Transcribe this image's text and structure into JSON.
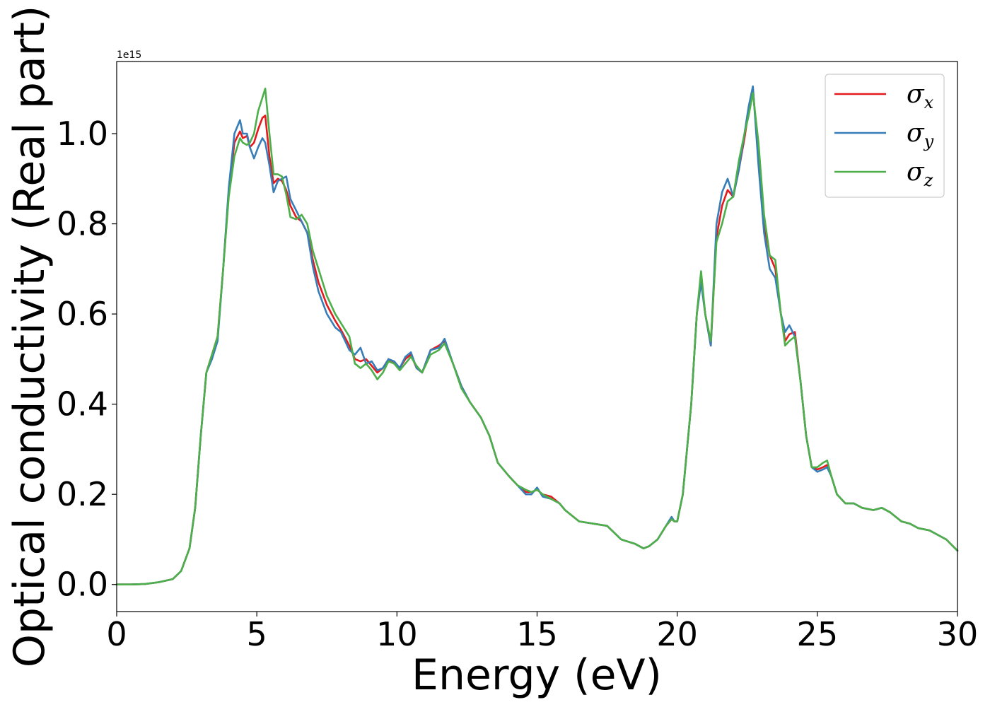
{
  "chart_data": {
    "type": "line",
    "title": "",
    "xlabel": "Energy (eV)",
    "ylabel": "Optical conductivity (Real part)",
    "y_offset_label": "1e15",
    "xlim": [
      0,
      30
    ],
    "ylim": [
      -0.06,
      1.16
    ],
    "x_ticks": [
      0,
      5,
      10,
      15,
      20,
      25,
      30
    ],
    "x_tick_labels": [
      "0",
      "5",
      "10",
      "15",
      "20",
      "25",
      "30"
    ],
    "y_ticks": [
      0.0,
      0.2,
      0.4,
      0.6,
      0.8,
      1.0
    ],
    "y_tick_labels": [
      "0.0",
      "0.2",
      "0.4",
      "0.6",
      "0.8",
      "1.0"
    ],
    "grid": false,
    "legend": {
      "placement": "top-right"
    },
    "series": [
      {
        "name": "σx",
        "symbol": "σ",
        "subscript": "x",
        "color": "#e41a1c",
        "x": [
          0,
          0.5,
          1,
          1.5,
          2,
          2.3,
          2.6,
          2.8,
          3,
          3.2,
          3.4,
          3.6,
          3.8,
          4,
          4.2,
          4.4,
          4.5,
          4.65,
          4.75,
          4.9,
          5.05,
          5.2,
          5.3,
          5.45,
          5.6,
          5.75,
          5.9,
          6.05,
          6.2,
          6.4,
          6.6,
          6.8,
          7,
          7.2,
          7.5,
          7.8,
          8,
          8.3,
          8.5,
          8.7,
          8.9,
          9.1,
          9.3,
          9.5,
          9.7,
          9.9,
          10.1,
          10.3,
          10.5,
          10.7,
          10.9,
          11.2,
          11.5,
          11.7,
          12,
          12.3,
          12.6,
          13,
          13.3,
          13.6,
          14,
          14.3,
          14.6,
          14.8,
          15,
          15.2,
          15.5,
          15.8,
          16,
          16.5,
          17,
          17.5,
          18,
          18.5,
          18.8,
          19,
          19.3,
          19.6,
          19.8,
          19.9,
          20,
          20.2,
          20.5,
          20.7,
          20.85,
          21,
          21.2,
          21.4,
          21.6,
          21.8,
          22,
          22.2,
          22.4,
          22.55,
          22.7,
          22.9,
          23.1,
          23.3,
          23.5,
          23.7,
          23.85,
          24,
          24.2,
          24.4,
          24.6,
          24.8,
          25,
          25.2,
          25.35,
          25.5,
          25.7,
          26,
          26.3,
          26.6,
          27,
          27.3,
          27.6,
          28,
          28.3,
          28.6,
          29,
          29.3,
          29.6,
          30
        ],
        "y": [
          0,
          0,
          0.001,
          0.005,
          0.012,
          0.03,
          0.08,
          0.17,
          0.33,
          0.47,
          0.51,
          0.55,
          0.7,
          0.87,
          0.98,
          1.005,
          0.99,
          0.995,
          0.97,
          0.98,
          1.01,
          1.035,
          1.04,
          0.95,
          0.89,
          0.9,
          0.895,
          0.875,
          0.84,
          0.815,
          0.805,
          0.78,
          0.72,
          0.67,
          0.62,
          0.585,
          0.565,
          0.53,
          0.5,
          0.495,
          0.5,
          0.485,
          0.47,
          0.48,
          0.5,
          0.49,
          0.48,
          0.5,
          0.51,
          0.48,
          0.47,
          0.52,
          0.53,
          0.54,
          0.49,
          0.44,
          0.405,
          0.37,
          0.33,
          0.27,
          0.24,
          0.22,
          0.205,
          0.205,
          0.21,
          0.2,
          0.195,
          0.18,
          0.165,
          0.14,
          0.135,
          0.13,
          0.1,
          0.09,
          0.08,
          0.085,
          0.1,
          0.13,
          0.145,
          0.14,
          0.14,
          0.2,
          0.4,
          0.6,
          0.68,
          0.6,
          0.53,
          0.77,
          0.84,
          0.875,
          0.86,
          0.92,
          0.99,
          1.05,
          1.1,
          0.95,
          0.8,
          0.73,
          0.7,
          0.6,
          0.54,
          0.555,
          0.56,
          0.45,
          0.33,
          0.26,
          0.255,
          0.26,
          0.265,
          0.24,
          0.2,
          0.18,
          0.18,
          0.17,
          0.165,
          0.17,
          0.16,
          0.14,
          0.135,
          0.125,
          0.12,
          0.11,
          0.1,
          0.075
        ]
      },
      {
        "name": "σy",
        "symbol": "σ",
        "subscript": "y",
        "color": "#377eb8",
        "x": [
          0,
          0.5,
          1,
          1.5,
          2,
          2.3,
          2.6,
          2.8,
          3,
          3.2,
          3.4,
          3.6,
          3.8,
          4,
          4.2,
          4.4,
          4.5,
          4.65,
          4.75,
          4.9,
          5.05,
          5.2,
          5.3,
          5.45,
          5.6,
          5.75,
          5.9,
          6.05,
          6.2,
          6.4,
          6.6,
          6.8,
          7,
          7.2,
          7.5,
          7.8,
          8,
          8.3,
          8.5,
          8.7,
          8.9,
          9.1,
          9.3,
          9.5,
          9.7,
          9.9,
          10.1,
          10.3,
          10.5,
          10.7,
          10.9,
          11.2,
          11.5,
          11.7,
          12,
          12.3,
          12.6,
          13,
          13.3,
          13.6,
          14,
          14.3,
          14.6,
          14.8,
          15,
          15.2,
          15.5,
          15.8,
          16,
          16.5,
          17,
          17.5,
          18,
          18.5,
          18.8,
          19,
          19.3,
          19.6,
          19.8,
          19.9,
          20,
          20.2,
          20.5,
          20.7,
          20.85,
          21,
          21.2,
          21.4,
          21.6,
          21.8,
          22,
          22.2,
          22.4,
          22.55,
          22.7,
          22.9,
          23.1,
          23.3,
          23.5,
          23.7,
          23.85,
          24,
          24.2,
          24.4,
          24.6,
          24.8,
          25,
          25.2,
          25.35,
          25.5,
          25.7,
          26,
          26.3,
          26.6,
          27,
          27.3,
          27.6,
          28,
          28.3,
          28.6,
          29,
          29.3,
          29.6,
          30
        ],
        "y": [
          0,
          0,
          0.001,
          0.005,
          0.012,
          0.03,
          0.08,
          0.17,
          0.33,
          0.47,
          0.5,
          0.54,
          0.7,
          0.88,
          1.0,
          1.03,
          1.0,
          1.0,
          0.97,
          0.945,
          0.97,
          0.99,
          0.98,
          0.93,
          0.87,
          0.895,
          0.9,
          0.905,
          0.855,
          0.83,
          0.805,
          0.78,
          0.705,
          0.65,
          0.6,
          0.57,
          0.56,
          0.52,
          0.51,
          0.525,
          0.49,
          0.495,
          0.475,
          0.48,
          0.5,
          0.495,
          0.48,
          0.505,
          0.515,
          0.48,
          0.47,
          0.52,
          0.525,
          0.545,
          0.49,
          0.44,
          0.405,
          0.37,
          0.33,
          0.27,
          0.24,
          0.22,
          0.2,
          0.2,
          0.215,
          0.195,
          0.19,
          0.18,
          0.165,
          0.14,
          0.135,
          0.13,
          0.1,
          0.09,
          0.08,
          0.085,
          0.1,
          0.13,
          0.15,
          0.14,
          0.14,
          0.2,
          0.4,
          0.6,
          0.67,
          0.6,
          0.53,
          0.8,
          0.87,
          0.9,
          0.86,
          0.92,
          1.0,
          1.06,
          1.105,
          0.93,
          0.78,
          0.7,
          0.68,
          0.6,
          0.56,
          0.575,
          0.55,
          0.45,
          0.33,
          0.26,
          0.25,
          0.255,
          0.26,
          0.24,
          0.2,
          0.18,
          0.18,
          0.17,
          0.165,
          0.17,
          0.16,
          0.14,
          0.135,
          0.125,
          0.12,
          0.11,
          0.1,
          0.075
        ]
      },
      {
        "name": "σz",
        "symbol": "σ",
        "subscript": "z",
        "color": "#4daf4a",
        "x": [
          0,
          0.5,
          1,
          1.5,
          2,
          2.3,
          2.6,
          2.8,
          3,
          3.2,
          3.4,
          3.6,
          3.8,
          4,
          4.2,
          4.4,
          4.5,
          4.65,
          4.75,
          4.9,
          5.05,
          5.2,
          5.3,
          5.45,
          5.6,
          5.75,
          5.9,
          6.05,
          6.2,
          6.4,
          6.6,
          6.8,
          7,
          7.2,
          7.5,
          7.8,
          8,
          8.3,
          8.5,
          8.7,
          8.9,
          9.1,
          9.3,
          9.5,
          9.7,
          9.9,
          10.1,
          10.3,
          10.5,
          10.7,
          10.9,
          11.2,
          11.5,
          11.7,
          12,
          12.3,
          12.6,
          13,
          13.3,
          13.6,
          14,
          14.3,
          14.6,
          14.8,
          15,
          15.2,
          15.5,
          15.8,
          16,
          16.5,
          17,
          17.5,
          18,
          18.5,
          18.8,
          19,
          19.3,
          19.6,
          19.8,
          19.9,
          20,
          20.2,
          20.5,
          20.7,
          20.85,
          21,
          21.2,
          21.4,
          21.6,
          21.8,
          22,
          22.2,
          22.4,
          22.55,
          22.7,
          22.9,
          23.1,
          23.3,
          23.5,
          23.7,
          23.85,
          24,
          24.2,
          24.4,
          24.6,
          24.8,
          25,
          25.2,
          25.35,
          25.5,
          25.7,
          26,
          26.3,
          26.6,
          27,
          27.3,
          27.6,
          28,
          28.3,
          28.6,
          29,
          29.3,
          29.6,
          30
        ],
        "y": [
          0,
          0,
          0.001,
          0.005,
          0.012,
          0.03,
          0.08,
          0.17,
          0.33,
          0.47,
          0.51,
          0.55,
          0.7,
          0.86,
          0.95,
          0.99,
          0.98,
          0.975,
          0.98,
          1.0,
          1.05,
          1.08,
          1.1,
          1.0,
          0.91,
          0.91,
          0.905,
          0.865,
          0.815,
          0.81,
          0.82,
          0.8,
          0.74,
          0.7,
          0.64,
          0.6,
          0.58,
          0.55,
          0.49,
          0.48,
          0.49,
          0.475,
          0.455,
          0.47,
          0.495,
          0.49,
          0.475,
          0.49,
          0.505,
          0.485,
          0.47,
          0.51,
          0.52,
          0.535,
          0.49,
          0.435,
          0.405,
          0.37,
          0.33,
          0.27,
          0.24,
          0.22,
          0.21,
          0.205,
          0.21,
          0.2,
          0.19,
          0.18,
          0.165,
          0.14,
          0.135,
          0.13,
          0.1,
          0.09,
          0.08,
          0.085,
          0.1,
          0.13,
          0.145,
          0.14,
          0.14,
          0.2,
          0.4,
          0.6,
          0.695,
          0.6,
          0.54,
          0.76,
          0.8,
          0.85,
          0.86,
          0.94,
          1.0,
          1.04,
          1.09,
          0.98,
          0.82,
          0.73,
          0.72,
          0.6,
          0.53,
          0.54,
          0.55,
          0.45,
          0.33,
          0.26,
          0.26,
          0.27,
          0.275,
          0.24,
          0.2,
          0.18,
          0.18,
          0.17,
          0.165,
          0.17,
          0.16,
          0.14,
          0.135,
          0.125,
          0.12,
          0.11,
          0.1,
          0.075
        ]
      }
    ]
  }
}
